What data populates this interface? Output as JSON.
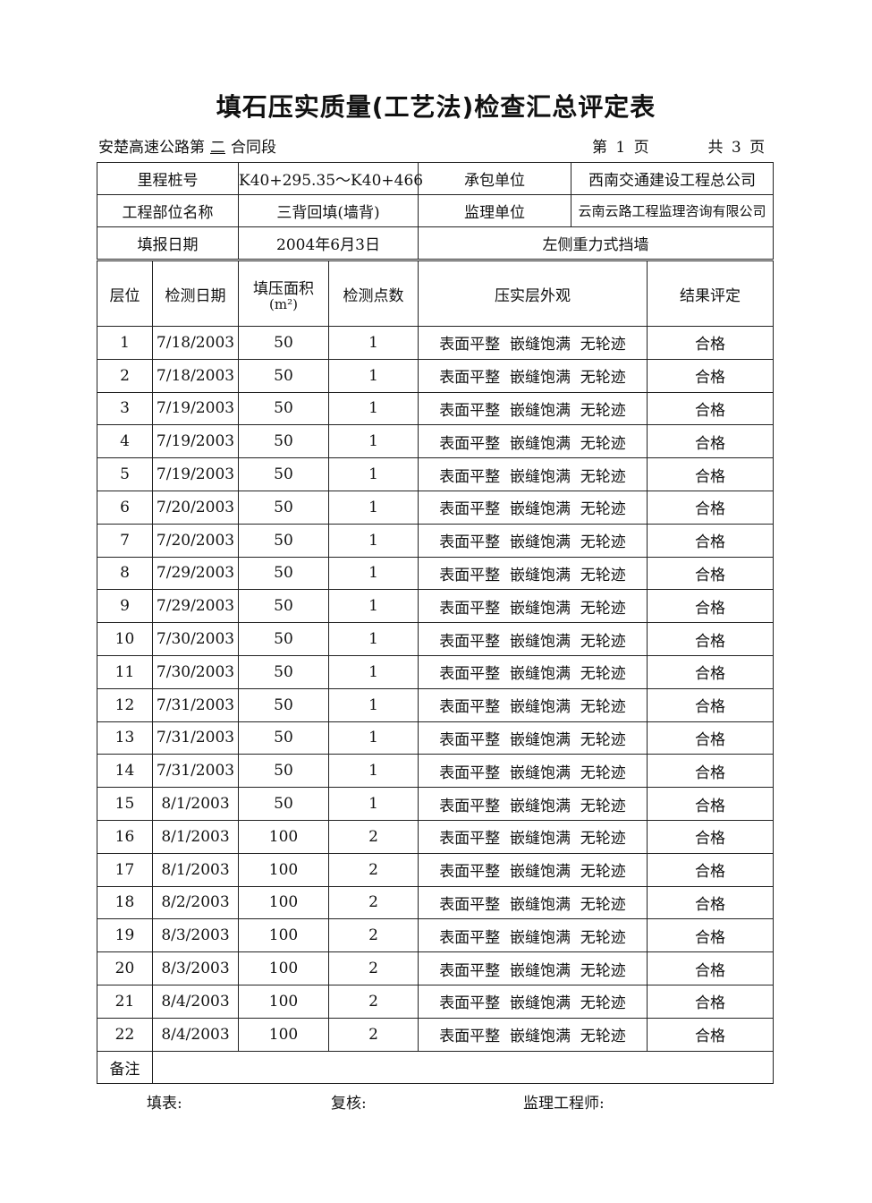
{
  "title": "填石压实质量(工艺法)检查汇总评定表",
  "subtitle": {
    "prefix": "安楚高速公路第",
    "section": "二",
    "suffix": "合同段"
  },
  "page_info": {
    "current": "第 1 页",
    "total": "共 3 页"
  },
  "info": {
    "mileage_label": "里程桩号",
    "mileage": "K40+295.35～K40+466",
    "contractor_label": "承包单位",
    "contractor": "西南交通建设工程总公司",
    "part_label": "工程部位名称",
    "part": "三背回填(墙背)",
    "supervisor_label": "监理单位",
    "supervisor": "云南云路工程监理咨询有限公司",
    "date_label": "填报日期",
    "date": "2004年6月3日",
    "location": "左侧重力式挡墙"
  },
  "headers": {
    "layer": "层位",
    "date": "检测日期",
    "area": "填压面积",
    "area_unit": "(m²)",
    "points": "检测点数",
    "appearance": "压实层外观",
    "result": "结果评定"
  },
  "rows": [
    [
      "1",
      "7/18/2003",
      "50",
      "1",
      "表面平整  嵌缝饱满  无轮迹",
      "合格"
    ],
    [
      "2",
      "7/18/2003",
      "50",
      "1",
      "表面平整  嵌缝饱满  无轮迹",
      "合格"
    ],
    [
      "3",
      "7/19/2003",
      "50",
      "1",
      "表面平整  嵌缝饱满  无轮迹",
      "合格"
    ],
    [
      "4",
      "7/19/2003",
      "50",
      "1",
      "表面平整  嵌缝饱满  无轮迹",
      "合格"
    ],
    [
      "5",
      "7/19/2003",
      "50",
      "1",
      "表面平整  嵌缝饱满  无轮迹",
      "合格"
    ],
    [
      "6",
      "7/20/2003",
      "50",
      "1",
      "表面平整  嵌缝饱满  无轮迹",
      "合格"
    ],
    [
      "7",
      "7/20/2003",
      "50",
      "1",
      "表面平整  嵌缝饱满  无轮迹",
      "合格"
    ],
    [
      "8",
      "7/29/2003",
      "50",
      "1",
      "表面平整  嵌缝饱满  无轮迹",
      "合格"
    ],
    [
      "9",
      "7/29/2003",
      "50",
      "1",
      "表面平整  嵌缝饱满  无轮迹",
      "合格"
    ],
    [
      "10",
      "7/30/2003",
      "50",
      "1",
      "表面平整  嵌缝饱满  无轮迹",
      "合格"
    ],
    [
      "11",
      "7/30/2003",
      "50",
      "1",
      "表面平整  嵌缝饱满  无轮迹",
      "合格"
    ],
    [
      "12",
      "7/31/2003",
      "50",
      "1",
      "表面平整  嵌缝饱满  无轮迹",
      "合格"
    ],
    [
      "13",
      "7/31/2003",
      "50",
      "1",
      "表面平整  嵌缝饱满  无轮迹",
      "合格"
    ],
    [
      "14",
      "7/31/2003",
      "50",
      "1",
      "表面平整  嵌缝饱满  无轮迹",
      "合格"
    ],
    [
      "15",
      "8/1/2003",
      "50",
      "1",
      "表面平整  嵌缝饱满  无轮迹",
      "合格"
    ],
    [
      "16",
      "8/1/2003",
      "100",
      "2",
      "表面平整  嵌缝饱满  无轮迹",
      "合格"
    ],
    [
      "17",
      "8/1/2003",
      "100",
      "2",
      "表面平整  嵌缝饱满  无轮迹",
      "合格"
    ],
    [
      "18",
      "8/2/2003",
      "100",
      "2",
      "表面平整  嵌缝饱满  无轮迹",
      "合格"
    ],
    [
      "19",
      "8/3/2003",
      "100",
      "2",
      "表面平整  嵌缝饱满  无轮迹",
      "合格"
    ],
    [
      "20",
      "8/3/2003",
      "100",
      "2",
      "表面平整  嵌缝饱满  无轮迹",
      "合格"
    ],
    [
      "21",
      "8/4/2003",
      "100",
      "2",
      "表面平整  嵌缝饱满  无轮迹",
      "合格"
    ],
    [
      "22",
      "8/4/2003",
      "100",
      "2",
      "表面平整  嵌缝饱满  无轮迹",
      "合格"
    ]
  ],
  "remark_label": "备注",
  "remark": "",
  "footer": {
    "filler": "填表:",
    "reviewer": "复核:",
    "engineer": "监理工程师:"
  }
}
